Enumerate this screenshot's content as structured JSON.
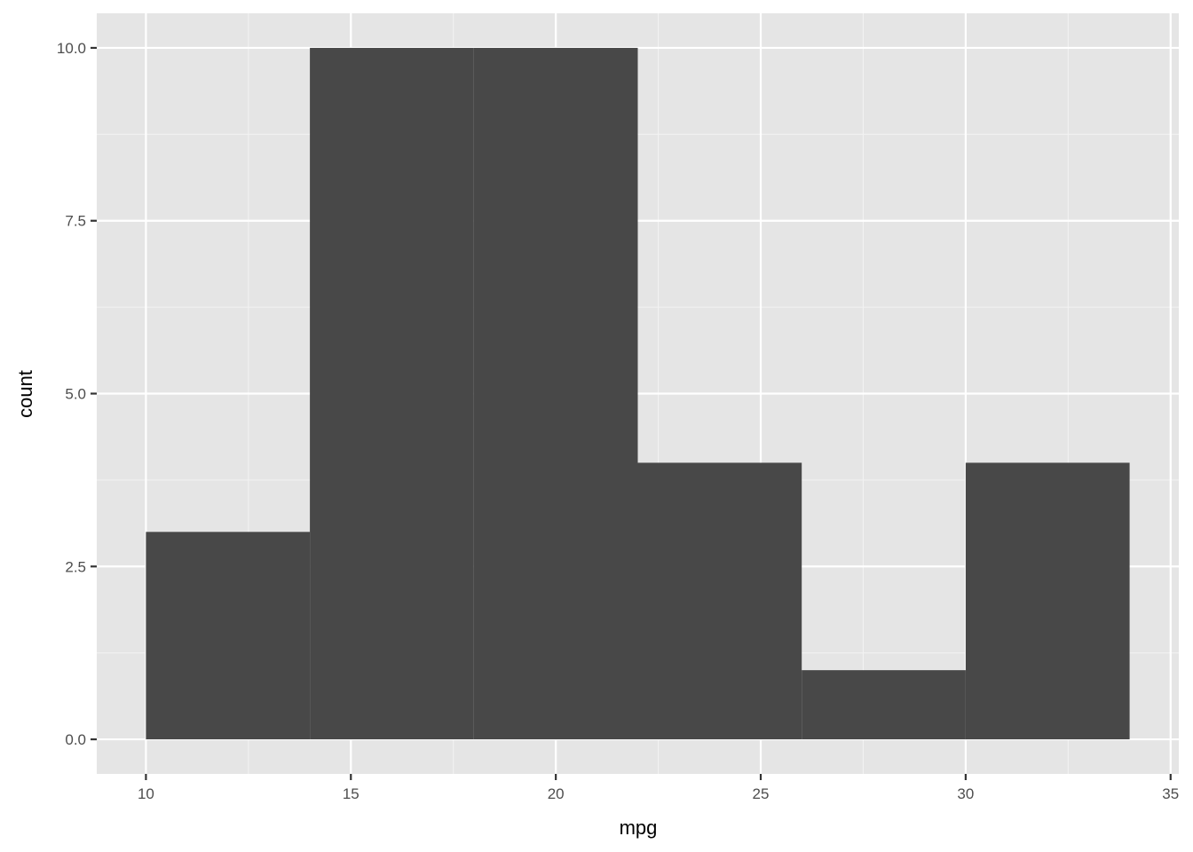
{
  "chart_data": {
    "type": "bar",
    "subtype": "histogram",
    "bins": [
      {
        "x0": 10,
        "x1": 14,
        "count": 3
      },
      {
        "x0": 14,
        "x1": 18,
        "count": 10
      },
      {
        "x0": 18,
        "x1": 22,
        "count": 10
      },
      {
        "x0": 22,
        "x1": 26,
        "count": 4
      },
      {
        "x0": 26,
        "x1": 30,
        "count": 1
      },
      {
        "x0": 30,
        "x1": 34,
        "count": 4
      }
    ],
    "title": "",
    "xlabel": "mpg",
    "ylabel": "count",
    "xlim": [
      8.8,
      35.2
    ],
    "ylim": [
      -0.5,
      10.5
    ],
    "x_ticks": [
      "10",
      "15",
      "20",
      "25",
      "30",
      "35"
    ],
    "y_ticks": [
      "0.0",
      "2.5",
      "5.0",
      "7.5",
      "10.0"
    ],
    "grid": true,
    "colors": {
      "bar": "#484848",
      "panel": "#e5e5e5",
      "grid": "#ffffff"
    }
  }
}
